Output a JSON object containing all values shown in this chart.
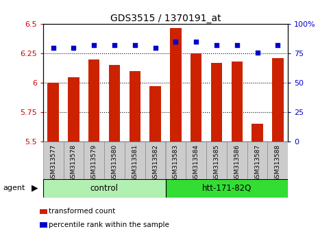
{
  "title": "GDS3515 / 1370191_at",
  "samples": [
    "GSM313577",
    "GSM313578",
    "GSM313579",
    "GSM313580",
    "GSM313581",
    "GSM313582",
    "GSM313583",
    "GSM313584",
    "GSM313585",
    "GSM313586",
    "GSM313587",
    "GSM313588"
  ],
  "red_values": [
    6.0,
    6.05,
    6.2,
    6.15,
    6.1,
    5.97,
    6.47,
    6.25,
    6.17,
    6.18,
    5.65,
    6.21
  ],
  "blue_values": [
    80,
    80,
    82,
    82,
    82,
    80,
    85,
    85,
    82,
    82,
    76,
    82
  ],
  "ylim_left": [
    5.5,
    6.5
  ],
  "ylim_right": [
    0,
    100
  ],
  "yticks_left": [
    5.5,
    5.75,
    6.0,
    6.25,
    6.5
  ],
  "yticks_right": [
    0,
    25,
    50,
    75,
    100
  ],
  "ytick_labels_left": [
    "5.5",
    "5.75",
    "6",
    "6.25",
    "6.5"
  ],
  "ytick_labels_right": [
    "0",
    "25",
    "50",
    "75",
    "100%"
  ],
  "dotted_lines": [
    5.75,
    6.0,
    6.25
  ],
  "groups": [
    {
      "label": "control",
      "start": 0,
      "end": 6,
      "color": "#b2f0b2"
    },
    {
      "label": "htt-171-82Q",
      "start": 6,
      "end": 12,
      "color": "#33dd33"
    }
  ],
  "agent_label": "agent",
  "bar_color": "#cc2200",
  "dot_color": "#0000cc",
  "dot_marker": "s",
  "dot_size": 18,
  "bar_width": 0.55,
  "tick_area_color": "#cccccc",
  "tick_area_edge": "#888888",
  "legend_items": [
    {
      "color": "#cc2200",
      "label": "transformed count"
    },
    {
      "color": "#0000cc",
      "label": "percentile rank within the sample"
    }
  ]
}
